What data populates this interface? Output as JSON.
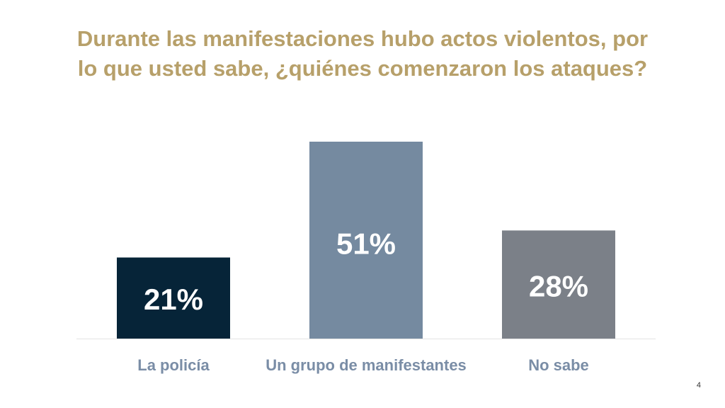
{
  "slide": {
    "title_line1": "Durante las manifestaciones hubo actos violentos, por",
    "title_line2": "lo que usted sabe, ¿quiénes comenzaron los ataques?",
    "page_number": "4"
  },
  "chart_data": {
    "type": "bar",
    "categories": [
      "La policía",
      "Un grupo de manifestantes",
      "No sabe"
    ],
    "values": [
      21,
      51,
      28
    ],
    "value_labels": [
      "21%",
      "51%",
      "28%"
    ],
    "bar_colors": [
      "#062438",
      "#758aa0",
      "#7b8088"
    ],
    "title": "Durante las manifestaciones hubo actos violentos, por lo que usted sabe, ¿quiénes comenzaron los ataques?",
    "xlabel": "",
    "ylabel": "",
    "ylim": [
      0,
      51
    ],
    "grid": false,
    "legend": "none",
    "category_label_color": "#7a8da6",
    "value_label_color": "#ffffff"
  }
}
